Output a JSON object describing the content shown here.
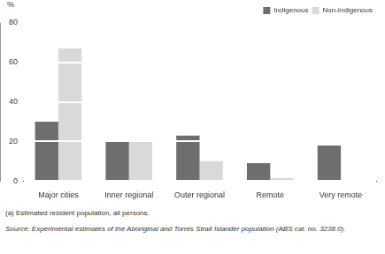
{
  "chart_data": {
    "type": "bar",
    "y_label": "%",
    "categories": [
      "Major cities",
      "Inner regional",
      "Outer regional",
      "Remote",
      "Very remote"
    ],
    "series": [
      {
        "name": "Indigenous",
        "color": "#6e6e6e",
        "values": [
          30,
          20.5,
          23,
          9,
          18
        ]
      },
      {
        "name": "Non-Indigenous",
        "color": "#d9d9d9",
        "values": [
          67,
          20.5,
          10,
          1.5,
          0.3
        ]
      }
    ],
    "ylim": [
      0,
      80
    ],
    "yticks": [
      0,
      20,
      40,
      60,
      80
    ],
    "grid": true,
    "legend": "upper right",
    "annotations": [
      "(a) Estimated resident population, all persons.",
      "Source: Experimental estimates of the Aboriginal and Torres Strait Islander population (ABS cat. no. 3238.0)."
    ]
  }
}
